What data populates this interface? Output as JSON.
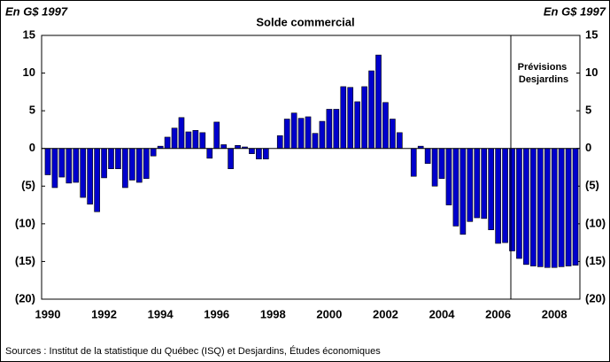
{
  "chart_data": {
    "type": "bar",
    "title": "Solde commercial",
    "y_axis_label": "En G$ 1997",
    "y2_axis_label": "En G$ 1997",
    "annotation": "Prévisions Desjardins",
    "source": "Sources : Institut de la statistique du Québec (ISQ) et Desjardins, Études économiques",
    "color": "#0000cc",
    "categories": [
      "1990",
      null,
      null,
      null,
      null,
      null,
      null,
      null,
      "1992",
      null,
      null,
      null,
      null,
      null,
      null,
      null,
      "1994",
      null,
      null,
      null,
      null,
      null,
      null,
      null,
      "1996",
      null,
      null,
      null,
      null,
      null,
      null,
      null,
      "1998",
      null,
      null,
      null,
      null,
      null,
      null,
      null,
      "2000",
      null,
      null,
      null,
      null,
      null,
      null,
      null,
      "2002",
      null,
      null,
      null,
      null,
      null,
      null,
      null,
      "2004",
      null,
      null,
      null,
      null,
      null,
      null,
      null,
      "2006",
      null,
      null,
      null,
      null,
      null,
      null,
      null,
      "2008",
      null,
      null,
      null
    ],
    "values": [
      -3.5,
      -5.2,
      -3.8,
      -4.6,
      -4.5,
      -6.5,
      -7.4,
      -8.4,
      -3.9,
      -2.7,
      -2.7,
      -5.2,
      -4.2,
      -4.5,
      -4.0,
      -1.0,
      0.3,
      1.5,
      2.7,
      4.1,
      2.2,
      2.4,
      2.1,
      -1.3,
      3.5,
      0.5,
      -2.7,
      0.4,
      0.2,
      -0.7,
      -1.4,
      -1.4,
      0,
      1.7,
      3.9,
      4.7,
      4.0,
      4.2,
      2.0,
      3.6,
      5.2,
      5.2,
      8.2,
      8.1,
      6.2,
      8.2,
      10.3,
      12.4,
      6.1,
      3.9,
      2.1,
      0,
      -3.7,
      0.3,
      -2.0,
      -5.0,
      -4.0,
      -7.5,
      -10.3,
      -11.4,
      -9.7,
      -9.2,
      -9.3,
      -10.8,
      -12.6,
      -12.5,
      -13.6,
      -14.6,
      -15.4,
      -15.6,
      -15.7,
      -15.8,
      -15.8,
      -15.7,
      -15.6,
      -15.5
    ],
    "ylim": [
      -20,
      15
    ],
    "yticks": [
      15,
      10,
      5,
      0,
      {
        "value": -5,
        "label": "(5)"
      },
      {
        "value": -10,
        "label": "(10)"
      },
      {
        "value": -15,
        "label": "(15)"
      },
      {
        "value": -20,
        "label": "(20)"
      }
    ],
    "y2lim": [
      -20,
      15
    ],
    "y2ticks": [
      15,
      10,
      5,
      0,
      {
        "value": -5,
        "label": "(5)"
      },
      {
        "value": -10,
        "label": "(10)"
      },
      {
        "value": -15,
        "label": "(15)"
      },
      {
        "value": -20,
        "label": "(20)"
      }
    ]
  }
}
